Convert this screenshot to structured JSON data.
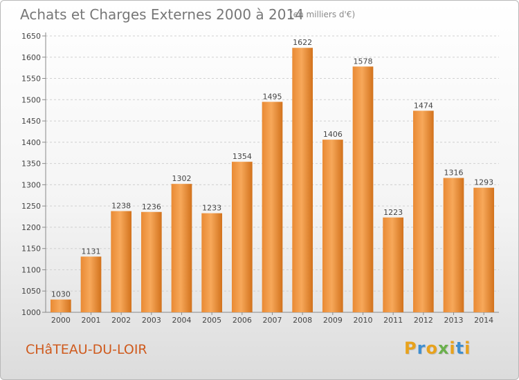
{
  "header": {
    "title": "Achats et Charges Externes 2000 à 2014",
    "subtitle": "(en milliers d'€)"
  },
  "footer": {
    "commune": "CHâTEAU-DU-LOIR",
    "logo": {
      "text": "Proxiti",
      "letters": [
        {
          "char": "P",
          "color": "#e8a21c"
        },
        {
          "char": "r",
          "color": "#3e8ed0"
        },
        {
          "char": "o",
          "color": "#e8a21c"
        },
        {
          "char": "x",
          "color": "#6ab04c"
        },
        {
          "char": "i",
          "color": "#e8a21c"
        },
        {
          "char": "t",
          "color": "#3e8ed0"
        },
        {
          "char": "i",
          "color": "#e8a21c"
        }
      ]
    }
  },
  "chart_data": {
    "type": "bar",
    "title": "Achats et Charges Externes 2000 à 2014",
    "subtitle": "(en milliers d'€)",
    "categories": [
      "2000",
      "2001",
      "2002",
      "2003",
      "2004",
      "2005",
      "2006",
      "2007",
      "2008",
      "2009",
      "2010",
      "2011",
      "2012",
      "2013",
      "2014"
    ],
    "values": [
      1030,
      1131,
      1238,
      1236,
      1302,
      1233,
      1354,
      1495,
      1622,
      1406,
      1578,
      1223,
      1474,
      1316,
      1293
    ],
    "yticks": [
      1000,
      1050,
      1100,
      1150,
      1200,
      1250,
      1300,
      1350,
      1400,
      1450,
      1500,
      1550,
      1600,
      1650
    ],
    "ylim": [
      1000,
      1650
    ],
    "grid": true,
    "bar_color_top": "#f7a85a",
    "bar_color_bottom": "#d2721c"
  }
}
